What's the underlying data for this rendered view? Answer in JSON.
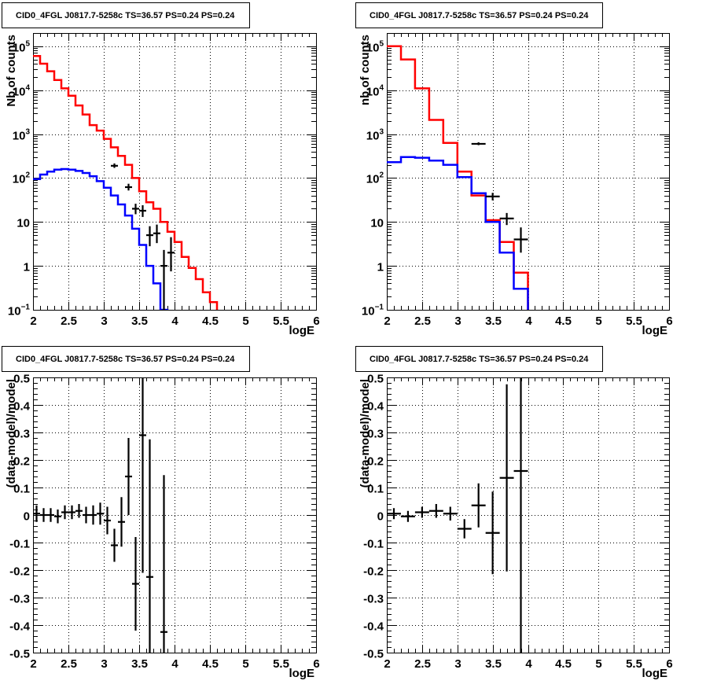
{
  "chart_data": [
    {
      "type": "histogram-log",
      "title": "CID0_4FGL J0817.7-5258c TS=36.57 PS=0.24 PS=0.24",
      "xlabel": "logE",
      "ylabel": "Nb.of counts",
      "xlim": [
        2,
        6
      ],
      "ylim": [
        0.1,
        200000
      ],
      "log_y": true,
      "grid": true,
      "x_ticks": [
        "2",
        "2.5",
        "3",
        "3.5",
        "4",
        "4.5",
        "5",
        "5.5",
        "6"
      ],
      "y_ticks": [
        {
          "value": 0.1,
          "label": "10",
          "exp": "−1"
        },
        {
          "value": 1,
          "label": "1",
          "exp": ""
        },
        {
          "value": 10,
          "label": "10",
          "exp": ""
        },
        {
          "value": 100,
          "label": "10",
          "exp": "2"
        },
        {
          "value": 1000,
          "label": "10",
          "exp": "3"
        },
        {
          "value": 10000,
          "label": "10",
          "exp": "4"
        },
        {
          "value": 100000,
          "label": "10",
          "exp": "5"
        }
      ],
      "bin_width": 0.1,
      "series": [
        {
          "color": "#ff0000",
          "bin_edges_start": 2.0,
          "values": [
            60000,
            40000,
            27000,
            17000,
            11000,
            7500,
            4500,
            2800,
            1600,
            1200,
            780,
            500,
            320,
            200,
            100,
            50,
            28,
            20,
            10,
            6,
            3.5,
            1.6,
            0.9,
            0.5,
            0.25,
            0.15,
            0.08,
            0.08,
            0.08,
            0.08,
            0.08,
            0.08,
            0.08,
            0.08,
            0.08,
            0.08,
            0.08,
            0.08,
            0.08,
            0.08
          ]
        },
        {
          "color": "#0000ff",
          "bin_edges_start": 2.0,
          "values": [
            95,
            120,
            140,
            155,
            160,
            155,
            145,
            130,
            110,
            85,
            60,
            40,
            25,
            14,
            7,
            3,
            1,
            0.4,
            0.1,
            0.05,
            0.05,
            0.05,
            0.05,
            0.05,
            0.05,
            0.05,
            0.05,
            0.05,
            0.05,
            0.05,
            0.05,
            0.05,
            0.05,
            0.05,
            0.05,
            0.05,
            0.05,
            0.05,
            0.05,
            0.05
          ]
        }
      ],
      "data_points": [
        {
          "x": 3.15,
          "y": 190,
          "lo": 170,
          "hi": 215
        },
        {
          "x": 3.35,
          "y": 62,
          "lo": 52,
          "hi": 74
        },
        {
          "x": 3.45,
          "y": 20,
          "lo": 15,
          "hi": 26
        },
        {
          "x": 3.55,
          "y": 18,
          "lo": 13,
          "hi": 24
        },
        {
          "x": 3.65,
          "y": 5,
          "lo": 2.8,
          "hi": 8
        },
        {
          "x": 3.75,
          "y": 5.5,
          "lo": 3.3,
          "hi": 8.7
        },
        {
          "x": 3.85,
          "y": 1,
          "lo": 0.1,
          "hi": 2.3
        },
        {
          "x": 3.95,
          "y": 2,
          "lo": 0.75,
          "hi": 4.5
        }
      ]
    },
    {
      "type": "histogram-log",
      "title": "CID0_4FGL J0817.7-5258c TS=36.57 PS=0.24 PS=0.24",
      "xlabel": "logE",
      "ylabel": "nb.of counts",
      "xlim": [
        2,
        6
      ],
      "ylim": [
        0.1,
        200000
      ],
      "log_y": true,
      "grid": true,
      "x_ticks": [
        "2",
        "2.5",
        "3",
        "3.5",
        "4",
        "4.5",
        "5",
        "5.5",
        "6"
      ],
      "y_ticks": [
        {
          "value": 0.1,
          "label": "10",
          "exp": "−1"
        },
        {
          "value": 1,
          "label": "1",
          "exp": ""
        },
        {
          "value": 10,
          "label": "10",
          "exp": ""
        },
        {
          "value": 100,
          "label": "10",
          "exp": "2"
        },
        {
          "value": 1000,
          "label": "10",
          "exp": "3"
        },
        {
          "value": 10000,
          "label": "10",
          "exp": "4"
        },
        {
          "value": 100000,
          "label": "10",
          "exp": "5"
        }
      ],
      "bin_width": 0.2,
      "series": [
        {
          "color": "#ff0000",
          "bin_edges_start": 2.0,
          "values": [
            100000,
            50000,
            11000,
            2100,
            630,
            140,
            40,
            11,
            3.5,
            0.7,
            0.08,
            0.08,
            0.08,
            0.08,
            0.08,
            0.08,
            0.08,
            0.08,
            0.08,
            0.08
          ]
        },
        {
          "color": "#0000ff",
          "bin_edges_start": 2.0,
          "values": [
            230,
            300,
            290,
            250,
            200,
            105,
            45,
            10,
            2,
            0.3,
            0.05,
            0.05,
            0.05,
            0.05,
            0.05,
            0.05,
            0.05,
            0.05,
            0.05,
            0.05
          ]
        }
      ],
      "data_points": [
        {
          "x": 3.3,
          "y": 600,
          "lo": 560,
          "hi": 650
        },
        {
          "x": 3.5,
          "y": 38,
          "lo": 31,
          "hi": 46
        },
        {
          "x": 3.7,
          "y": 12,
          "lo": 8.5,
          "hi": 16
        },
        {
          "x": 3.9,
          "y": 4,
          "lo": 2,
          "hi": 7.5
        }
      ]
    },
    {
      "type": "errorbar",
      "title": "CID0_4FGL J0817.7-5258c TS=36.57 PS=0.24 PS=0.24",
      "xlabel": "logE",
      "ylabel": "(data-model)/model",
      "xlim": [
        2,
        6
      ],
      "ylim": [
        -0.5,
        0.5
      ],
      "grid": true,
      "x_ticks": [
        "2",
        "2.5",
        "3",
        "3.5",
        "4",
        "4.5",
        "5",
        "5.5",
        "6"
      ],
      "y_ticks": [
        "-0.5",
        "-0.4",
        "-0.3",
        "-0.2",
        "-0.1",
        "0",
        "0.1",
        "0.2",
        "0.3",
        "0.4",
        "0.5"
      ],
      "bin_width": 0.1,
      "data_points": [
        {
          "x": 2.05,
          "y": 0.005,
          "err": 0.03
        },
        {
          "x": 2.15,
          "y": 0.0,
          "err": 0.025
        },
        {
          "x": 2.25,
          "y": 0.0,
          "err": 0.025
        },
        {
          "x": 2.35,
          "y": -0.005,
          "err": 0.025
        },
        {
          "x": 2.45,
          "y": 0.01,
          "err": 0.025
        },
        {
          "x": 2.55,
          "y": 0.01,
          "err": 0.025
        },
        {
          "x": 2.65,
          "y": 0.015,
          "err": 0.025
        },
        {
          "x": 2.75,
          "y": 0.0,
          "err": 0.03
        },
        {
          "x": 2.85,
          "y": 0.0,
          "err": 0.035
        },
        {
          "x": 2.95,
          "y": 0.005,
          "err": 0.04
        },
        {
          "x": 3.05,
          "y": -0.02,
          "err": 0.05
        },
        {
          "x": 3.15,
          "y": -0.11,
          "err": 0.06
        },
        {
          "x": 3.25,
          "y": -0.025,
          "err": 0.09
        },
        {
          "x": 3.35,
          "y": 0.14,
          "err": 0.14
        },
        {
          "x": 3.45,
          "y": -0.25,
          "err": 0.17
        },
        {
          "x": 3.55,
          "y": 0.29,
          "err": 0.5
        },
        {
          "x": 3.65,
          "y": -0.225,
          "err": 0.5
        },
        {
          "x": 3.85,
          "y": -0.425,
          "err": 0.57
        }
      ]
    },
    {
      "type": "errorbar",
      "title": "CID0_4FGL J0817.7-5258c TS=36.57 PS=0.24 PS=0.24",
      "xlabel": "logE",
      "ylabel": "(data-model)/model",
      "xlim": [
        2,
        6
      ],
      "ylim": [
        -0.5,
        0.5
      ],
      "grid": true,
      "x_ticks": [
        "2",
        "2.5",
        "3",
        "3.5",
        "4",
        "4.5",
        "5",
        "5.5",
        "6"
      ],
      "y_ticks": [
        "-0.5",
        "-0.4",
        "-0.3",
        "-0.2",
        "-0.1",
        "0",
        "0.1",
        "0.2",
        "0.3",
        "0.4",
        "0.5"
      ],
      "bin_width": 0.2,
      "data_points": [
        {
          "x": 2.1,
          "y": 0.005,
          "err": 0.02
        },
        {
          "x": 2.3,
          "y": -0.005,
          "err": 0.02
        },
        {
          "x": 2.5,
          "y": 0.01,
          "err": 0.02
        },
        {
          "x": 2.7,
          "y": 0.015,
          "err": 0.025
        },
        {
          "x": 2.9,
          "y": 0.005,
          "err": 0.025
        },
        {
          "x": 3.1,
          "y": -0.05,
          "err": 0.035
        },
        {
          "x": 3.3,
          "y": 0.035,
          "err": 0.08
        },
        {
          "x": 3.5,
          "y": -0.065,
          "err": 0.15
        },
        {
          "x": 3.7,
          "y": 0.135,
          "err": 0.34
        },
        {
          "x": 3.9,
          "y": 0.16,
          "err": 0.7
        }
      ]
    }
  ]
}
